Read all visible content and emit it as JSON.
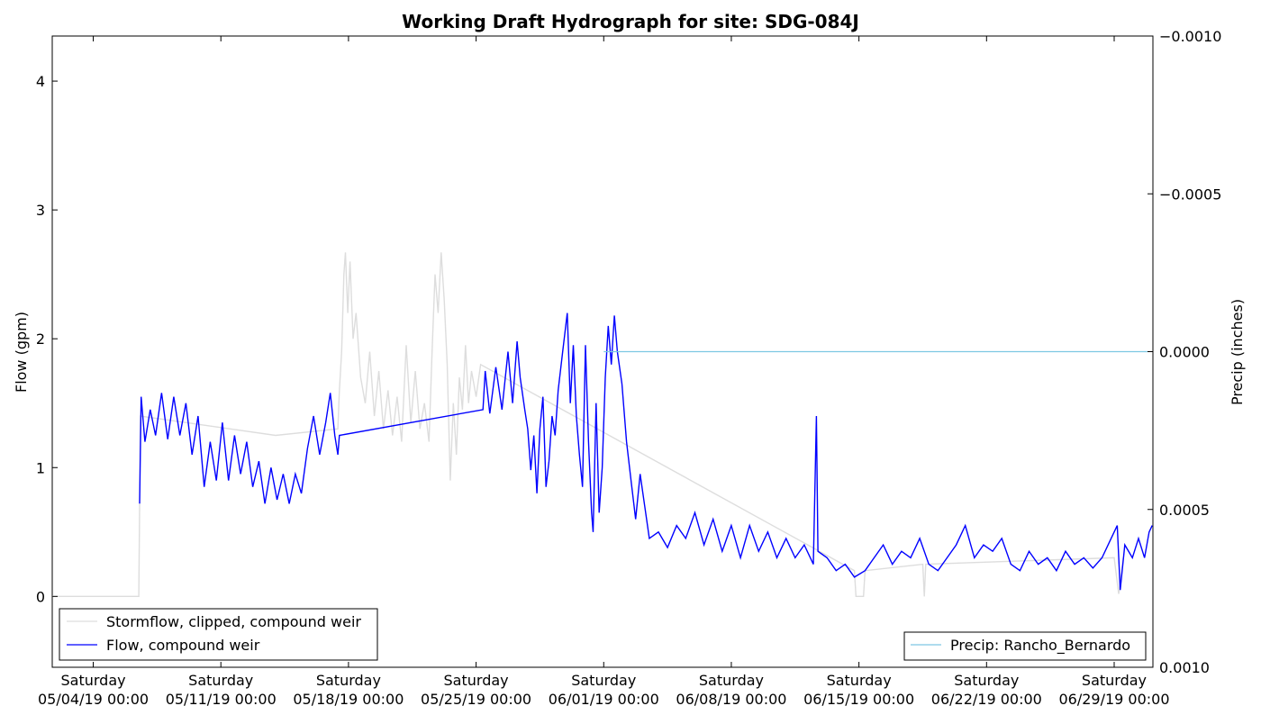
{
  "chart_data": {
    "type": "line",
    "title": "Working Draft Hydrograph for site: SDG-084J",
    "ylabel": "Flow (gpm)",
    "y2label": "Precip (inches)",
    "xlabel": "",
    "xlim": [
      "2019-05-01T18:00",
      "2019-07-01T03:00"
    ],
    "ylim": [
      -0.55,
      4.35
    ],
    "y2lim": [
      0.001,
      -0.001
    ],
    "y2_inverted": true,
    "grid": false,
    "x_ticks": [
      {
        "date": "2019-05-04T00:00",
        "weekday": "Saturday",
        "label": "05/04/19 00:00"
      },
      {
        "date": "2019-05-11T00:00",
        "weekday": "Saturday",
        "label": "05/11/19 00:00"
      },
      {
        "date": "2019-05-18T00:00",
        "weekday": "Saturday",
        "label": "05/18/19 00:00"
      },
      {
        "date": "2019-05-25T00:00",
        "weekday": "Saturday",
        "label": "05/25/19 00:00"
      },
      {
        "date": "2019-06-01T00:00",
        "weekday": "Saturday",
        "label": "06/01/19 00:00"
      },
      {
        "date": "2019-06-08T00:00",
        "weekday": "Saturday",
        "label": "06/08/19 00:00"
      },
      {
        "date": "2019-06-15T00:00",
        "weekday": "Saturday",
        "label": "06/15/19 00:00"
      },
      {
        "date": "2019-06-22T00:00",
        "weekday": "Saturday",
        "label": "06/22/19 00:00"
      },
      {
        "date": "2019-06-29T00:00",
        "weekday": "Saturday",
        "label": "06/29/19 00:00"
      }
    ],
    "y_ticks": [
      {
        "value": 0,
        "label": "0"
      },
      {
        "value": 1,
        "label": "1"
      },
      {
        "value": 2,
        "label": "2"
      },
      {
        "value": 3,
        "label": "3"
      },
      {
        "value": 4,
        "label": "4"
      }
    ],
    "y2_ticks": [
      {
        "value": -0.001,
        "label": "−0.0010"
      },
      {
        "value": -0.0005,
        "label": "−0.0005"
      },
      {
        "value": 0.0,
        "label": "0.0000"
      },
      {
        "value": 0.0005,
        "label": "0.0005"
      },
      {
        "value": 0.001,
        "label": "0.0010"
      }
    ],
    "series": [
      {
        "name": "Stormflow, clipped, compound weir",
        "color": "#dddddd",
        "axis": "left",
        "points": [
          [
            "2019-05-01T18:00",
            0
          ],
          [
            "2019-05-06T12:00",
            0
          ],
          [
            "2019-05-06T13:00",
            0.7
          ],
          [
            "2019-05-06T14:00",
            1.4
          ],
          [
            "2019-05-14T00:00",
            1.25
          ],
          [
            "2019-05-17T10:00",
            1.3
          ],
          [
            "2019-05-17T12:00",
            1.6
          ],
          [
            "2019-05-17T15:00",
            1.9
          ],
          [
            "2019-05-17T18:00",
            2.5
          ],
          [
            "2019-05-17T20:00",
            2.67
          ],
          [
            "2019-05-17T23:00",
            2.2
          ],
          [
            "2019-05-18T02:00",
            2.6
          ],
          [
            "2019-05-18T06:00",
            2.0
          ],
          [
            "2019-05-18T10:00",
            2.2
          ],
          [
            "2019-05-18T16:00",
            1.7
          ],
          [
            "2019-05-18T22:00",
            1.5
          ],
          [
            "2019-05-19T04:00",
            1.9
          ],
          [
            "2019-05-19T10:00",
            1.4
          ],
          [
            "2019-05-19T16:00",
            1.75
          ],
          [
            "2019-05-19T22:00",
            1.3
          ],
          [
            "2019-05-20T04:00",
            1.6
          ],
          [
            "2019-05-20T10:00",
            1.25
          ],
          [
            "2019-05-20T16:00",
            1.55
          ],
          [
            "2019-05-20T22:00",
            1.2
          ],
          [
            "2019-05-21T04:00",
            1.95
          ],
          [
            "2019-05-21T10:00",
            1.35
          ],
          [
            "2019-05-21T16:00",
            1.75
          ],
          [
            "2019-05-21T22:00",
            1.3
          ],
          [
            "2019-05-22T04:00",
            1.5
          ],
          [
            "2019-05-22T10:00",
            1.2
          ],
          [
            "2019-05-22T14:00",
            1.9
          ],
          [
            "2019-05-22T18:00",
            2.5
          ],
          [
            "2019-05-22T22:00",
            2.2
          ],
          [
            "2019-05-23T02:00",
            2.67
          ],
          [
            "2019-05-23T06:00",
            2.3
          ],
          [
            "2019-05-23T10:00",
            1.8
          ],
          [
            "2019-05-23T14:00",
            0.9
          ],
          [
            "2019-05-23T18:00",
            1.5
          ],
          [
            "2019-05-23T22:00",
            1.1
          ],
          [
            "2019-05-24T02:00",
            1.7
          ],
          [
            "2019-05-24T06:00",
            1.45
          ],
          [
            "2019-05-24T10:00",
            1.95
          ],
          [
            "2019-05-24T14:00",
            1.5
          ],
          [
            "2019-05-24T18:00",
            1.75
          ],
          [
            "2019-05-25T00:00",
            1.55
          ],
          [
            "2019-05-25T06:00",
            1.8
          ],
          [
            "2019-06-14T18:00",
            0.2
          ],
          [
            "2019-06-14T20:00",
            0.0
          ],
          [
            "2019-06-15T06:00",
            0.0
          ],
          [
            "2019-06-15T08:00",
            0.2
          ],
          [
            "2019-06-18T12:00",
            0.25
          ],
          [
            "2019-06-18T14:00",
            0.0
          ],
          [
            "2019-06-18T16:00",
            0.25
          ],
          [
            "2019-06-29T00:00",
            0.3
          ],
          [
            "2019-06-29T06:00",
            0.02
          ],
          [
            "2019-06-29T12:00",
            0.3
          ]
        ]
      },
      {
        "name": "Flow, compound weir",
        "color": "#0000ff",
        "axis": "left",
        "points": [
          [
            "2019-05-06T13:00",
            0.72
          ],
          [
            "2019-05-06T15:00",
            1.55
          ],
          [
            "2019-05-06T20:00",
            1.2
          ],
          [
            "2019-05-07T03:00",
            1.45
          ],
          [
            "2019-05-07T10:00",
            1.25
          ],
          [
            "2019-05-07T18:00",
            1.58
          ],
          [
            "2019-05-08T02:00",
            1.22
          ],
          [
            "2019-05-08T10:00",
            1.55
          ],
          [
            "2019-05-08T18:00",
            1.25
          ],
          [
            "2019-05-09T02:00",
            1.5
          ],
          [
            "2019-05-09T10:00",
            1.1
          ],
          [
            "2019-05-09T18:00",
            1.4
          ],
          [
            "2019-05-10T02:00",
            0.85
          ],
          [
            "2019-05-10T10:00",
            1.2
          ],
          [
            "2019-05-10T18:00",
            0.9
          ],
          [
            "2019-05-11T02:00",
            1.35
          ],
          [
            "2019-05-11T10:00",
            0.9
          ],
          [
            "2019-05-11T18:00",
            1.25
          ],
          [
            "2019-05-12T02:00",
            0.95
          ],
          [
            "2019-05-12T10:00",
            1.2
          ],
          [
            "2019-05-12T18:00",
            0.85
          ],
          [
            "2019-05-13T02:00",
            1.05
          ],
          [
            "2019-05-13T10:00",
            0.72
          ],
          [
            "2019-05-13T18:00",
            1.0
          ],
          [
            "2019-05-14T02:00",
            0.75
          ],
          [
            "2019-05-14T10:00",
            0.95
          ],
          [
            "2019-05-14T18:00",
            0.72
          ],
          [
            "2019-05-15T02:00",
            0.95
          ],
          [
            "2019-05-15T10:00",
            0.8
          ],
          [
            "2019-05-15T18:00",
            1.15
          ],
          [
            "2019-05-16T02:00",
            1.4
          ],
          [
            "2019-05-16T10:00",
            1.1
          ],
          [
            "2019-05-16T18:00",
            1.35
          ],
          [
            "2019-05-17T00:00",
            1.58
          ],
          [
            "2019-05-17T06:00",
            1.25
          ],
          [
            "2019-05-17T10:00",
            1.1
          ],
          [
            "2019-05-17T12:00",
            1.25
          ],
          [
            "2019-05-25T09:00",
            1.45
          ],
          [
            "2019-05-25T12:00",
            1.75
          ],
          [
            "2019-05-25T18:00",
            1.42
          ],
          [
            "2019-05-26T02:00",
            1.78
          ],
          [
            "2019-05-26T10:00",
            1.45
          ],
          [
            "2019-05-26T18:00",
            1.9
          ],
          [
            "2019-05-27T00:00",
            1.5
          ],
          [
            "2019-05-27T06:00",
            1.98
          ],
          [
            "2019-05-27T10:00",
            1.7
          ],
          [
            "2019-05-27T16:00",
            1.45
          ],
          [
            "2019-05-27T20:00",
            1.3
          ],
          [
            "2019-05-28T00:00",
            0.98
          ],
          [
            "2019-05-28T04:00",
            1.25
          ],
          [
            "2019-05-28T08:00",
            0.8
          ],
          [
            "2019-05-28T12:00",
            1.3
          ],
          [
            "2019-05-28T16:00",
            1.55
          ],
          [
            "2019-05-28T20:00",
            0.85
          ],
          [
            "2019-05-29T00:00",
            1.05
          ],
          [
            "2019-05-29T04:00",
            1.4
          ],
          [
            "2019-05-29T08:00",
            1.25
          ],
          [
            "2019-05-29T12:00",
            1.6
          ],
          [
            "2019-05-29T18:00",
            1.9
          ],
          [
            "2019-05-30T00:00",
            2.2
          ],
          [
            "2019-05-30T04:00",
            1.5
          ],
          [
            "2019-05-30T08:00",
            1.95
          ],
          [
            "2019-05-30T12:00",
            1.4
          ],
          [
            "2019-05-30T16:00",
            1.1
          ],
          [
            "2019-05-30T20:00",
            0.85
          ],
          [
            "2019-05-31T00:00",
            1.95
          ],
          [
            "2019-05-31T04:00",
            1.2
          ],
          [
            "2019-05-31T08:00",
            0.65
          ],
          [
            "2019-05-31T10:00",
            0.5
          ],
          [
            "2019-05-31T14:00",
            1.5
          ],
          [
            "2019-05-31T18:00",
            0.65
          ],
          [
            "2019-05-31T22:00",
            1.0
          ],
          [
            "2019-06-01T02:00",
            1.7
          ],
          [
            "2019-06-01T06:00",
            2.1
          ],
          [
            "2019-06-01T10:00",
            1.8
          ],
          [
            "2019-06-01T14:00",
            2.18
          ],
          [
            "2019-06-01T18:00",
            1.9
          ],
          [
            "2019-06-02T00:00",
            1.65
          ],
          [
            "2019-06-02T06:00",
            1.2
          ],
          [
            "2019-06-02T12:00",
            0.9
          ],
          [
            "2019-06-02T18:00",
            0.6
          ],
          [
            "2019-06-03T00:00",
            0.95
          ],
          [
            "2019-06-03T06:00",
            0.7
          ],
          [
            "2019-06-03T12:00",
            0.45
          ],
          [
            "2019-06-04T00:00",
            0.5
          ],
          [
            "2019-06-04T12:00",
            0.38
          ],
          [
            "2019-06-05T00:00",
            0.55
          ],
          [
            "2019-06-05T12:00",
            0.45
          ],
          [
            "2019-06-06T00:00",
            0.65
          ],
          [
            "2019-06-06T12:00",
            0.4
          ],
          [
            "2019-06-07T00:00",
            0.6
          ],
          [
            "2019-06-07T12:00",
            0.35
          ],
          [
            "2019-06-08T00:00",
            0.55
          ],
          [
            "2019-06-08T12:00",
            0.3
          ],
          [
            "2019-06-09T00:00",
            0.55
          ],
          [
            "2019-06-09T12:00",
            0.35
          ],
          [
            "2019-06-10T00:00",
            0.5
          ],
          [
            "2019-06-10T12:00",
            0.3
          ],
          [
            "2019-06-11T00:00",
            0.45
          ],
          [
            "2019-06-11T12:00",
            0.3
          ],
          [
            "2019-06-12T00:00",
            0.4
          ],
          [
            "2019-06-12T12:00",
            0.25
          ],
          [
            "2019-06-12T16:00",
            1.4
          ],
          [
            "2019-06-12T18:00",
            0.35
          ],
          [
            "2019-06-13T06:00",
            0.3
          ],
          [
            "2019-06-13T18:00",
            0.2
          ],
          [
            "2019-06-14T06:00",
            0.25
          ],
          [
            "2019-06-14T18:00",
            0.15
          ],
          [
            "2019-06-15T08:00",
            0.2
          ],
          [
            "2019-06-15T20:00",
            0.3
          ],
          [
            "2019-06-16T08:00",
            0.4
          ],
          [
            "2019-06-16T20:00",
            0.25
          ],
          [
            "2019-06-17T08:00",
            0.35
          ],
          [
            "2019-06-17T20:00",
            0.3
          ],
          [
            "2019-06-18T08:00",
            0.45
          ],
          [
            "2019-06-18T20:00",
            0.25
          ],
          [
            "2019-06-19T08:00",
            0.2
          ],
          [
            "2019-06-19T20:00",
            0.3
          ],
          [
            "2019-06-20T08:00",
            0.4
          ],
          [
            "2019-06-20T20:00",
            0.55
          ],
          [
            "2019-06-21T08:00",
            0.3
          ],
          [
            "2019-06-21T20:00",
            0.4
          ],
          [
            "2019-06-22T08:00",
            0.35
          ],
          [
            "2019-06-22T20:00",
            0.45
          ],
          [
            "2019-06-23T08:00",
            0.25
          ],
          [
            "2019-06-23T20:00",
            0.2
          ],
          [
            "2019-06-24T08:00",
            0.35
          ],
          [
            "2019-06-24T20:00",
            0.25
          ],
          [
            "2019-06-25T08:00",
            0.3
          ],
          [
            "2019-06-25T20:00",
            0.2
          ],
          [
            "2019-06-26T08:00",
            0.35
          ],
          [
            "2019-06-26T20:00",
            0.25
          ],
          [
            "2019-06-27T08:00",
            0.3
          ],
          [
            "2019-06-27T20:00",
            0.22
          ],
          [
            "2019-06-28T08:00",
            0.3
          ],
          [
            "2019-06-28T20:00",
            0.45
          ],
          [
            "2019-06-29T04:00",
            0.55
          ],
          [
            "2019-06-29T08:00",
            0.05
          ],
          [
            "2019-06-29T14:00",
            0.4
          ],
          [
            "2019-06-30T00:00",
            0.3
          ],
          [
            "2019-06-30T08:00",
            0.45
          ],
          [
            "2019-06-30T16:00",
            0.3
          ],
          [
            "2019-06-30T22:00",
            0.5
          ],
          [
            "2019-07-01T02:00",
            0.55
          ]
        ]
      },
      {
        "name": "Precip: Rancho_Bernardo",
        "color": "#7ec8e3",
        "axis": "right",
        "points": [
          [
            "2019-06-01T00:00",
            0.0
          ],
          [
            "2019-06-30T20:00",
            0.0
          ]
        ]
      }
    ],
    "legend_left": {
      "placement": "lower-left",
      "entries": [
        "Stormflow, clipped, compound weir",
        "Flow, compound weir"
      ]
    },
    "legend_right": {
      "placement": "lower-right",
      "entries": [
        "Precip: Rancho_Bernardo"
      ]
    }
  }
}
